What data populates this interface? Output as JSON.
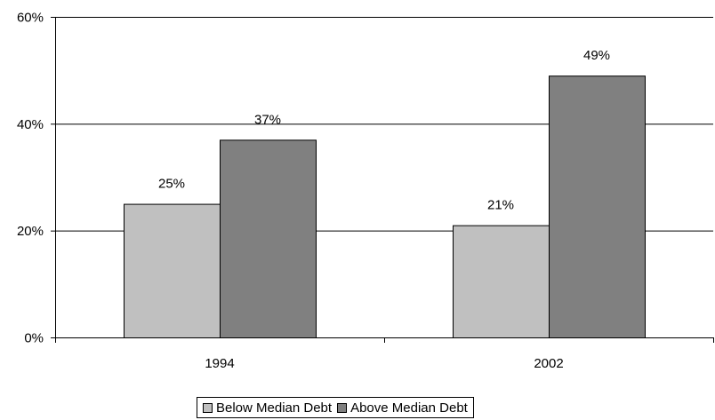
{
  "chart_data": {
    "type": "bar",
    "categories": [
      "1994",
      "2002"
    ],
    "series": [
      {
        "name": "Below  Median Debt",
        "values": [
          25,
          21
        ],
        "labels": [
          "25%",
          "21%"
        ],
        "color": "#c0c0c0"
      },
      {
        "name": "Above Median Debt",
        "values": [
          37,
          49
        ],
        "labels": [
          "37%",
          "49%"
        ],
        "color": "#808080"
      }
    ],
    "ylim": [
      0,
      60
    ],
    "yticks": [
      0,
      20,
      40,
      60
    ],
    "ytick_labels": [
      "0%",
      "20%",
      "40%",
      "60%"
    ],
    "title": "",
    "xlabel": "",
    "ylabel": "",
    "grid": true,
    "legend_position": "bottom"
  }
}
